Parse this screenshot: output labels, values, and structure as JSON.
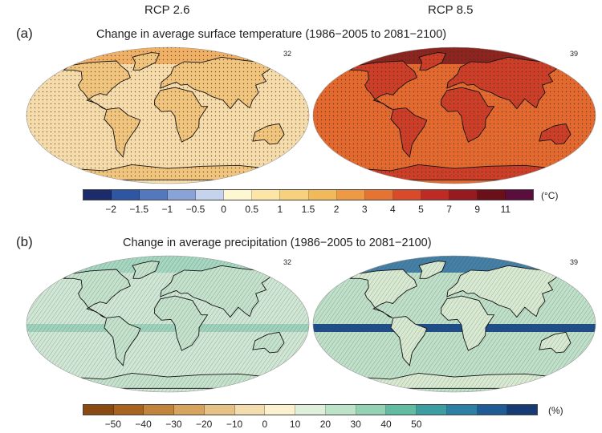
{
  "figure": {
    "col_left": "RCP 2.6",
    "col_right": "RCP 8.5"
  },
  "panel_a": {
    "letter": "(a)",
    "title": "Change in average surface temperature (1986−2005 to 2081−2100)",
    "left_count": "32",
    "right_count": "39",
    "colorbar": {
      "colors": [
        "#1b2b6b",
        "#2f56a2",
        "#5478be",
        "#8aa3d6",
        "#c5d3ec",
        "#fff6d2",
        "#fde6a5",
        "#f8d17c",
        "#f2b95a",
        "#ee9a45",
        "#e57433",
        "#d84a2a",
        "#be2a24",
        "#971a1e",
        "#6b1018",
        "#5b0e3e"
      ],
      "ticks": [
        "−2",
        "−1.5",
        "−1",
        "−0.5",
        "0",
        "0.5",
        "1",
        "1.5",
        "2",
        "3",
        "4",
        "5",
        "7",
        "9",
        "11"
      ],
      "unit": "(°C)"
    }
  },
  "panel_b": {
    "letter": "(b)",
    "title": "Change in average precipitation (1986−2005 to 2081−2100)",
    "left_count": "32",
    "right_count": "39",
    "colorbar": {
      "colors": [
        "#8b4a12",
        "#a8641f",
        "#c2843a",
        "#d7a45e",
        "#e7c287",
        "#f3dcae",
        "#fbf1cf",
        "#dff0da",
        "#bde3c8",
        "#93d2b3",
        "#62bca1",
        "#3d9ea2",
        "#2c7fa5",
        "#1f5b95",
        "#163a74"
      ],
      "ticks": [
        "−50",
        "−40",
        "−30",
        "−20",
        "−10",
        "0",
        "10",
        "20",
        "30",
        "40",
        "50"
      ],
      "unit": "(%)"
    }
  },
  "maps": {
    "a_left": {
      "ocean": "#f6dcaa",
      "land": "#f1c57d",
      "arctic": "#eea85a",
      "stipple": true
    },
    "a_right": {
      "ocean": "#e3692f",
      "land": "#cc3e28",
      "arctic": "#7c1a1d",
      "stipple": true
    },
    "b_left": {
      "ocean": "#cfe7d4",
      "land": "#c4e2cc",
      "arctic": "#9fd3bd",
      "stipple": false
    },
    "b_right": {
      "ocean": "#bfe0c9",
      "land": "#d9ead2",
      "arctic": "#2f6fa0",
      "stipple": false
    }
  }
}
